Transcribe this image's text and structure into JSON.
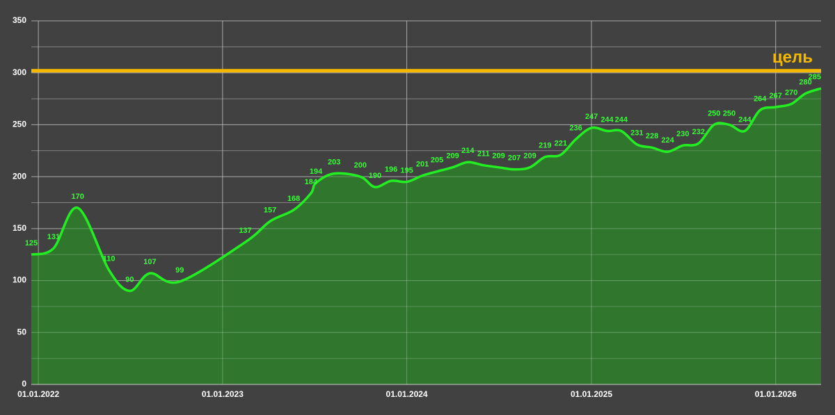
{
  "chart_data": {
    "type": "area",
    "x": [
      "18.12.2021",
      "31.01.2022",
      "20.03.2022",
      "21.05.2022",
      "01.07.2022",
      "10.08.2022",
      "08.10.2022",
      "15.02.2023",
      "05.04.2023",
      "22.05.2023",
      "25.06.2023",
      "05.07.2023",
      "10.08.2023",
      "01.10.2023",
      "30.10.2023",
      "01.12.2023",
      "01.01.2024",
      "01.02.2024",
      "01.03.2024",
      "01.04.2024",
      "01.05.2024",
      "01.06.2024",
      "01.07.2024",
      "01.08.2024",
      "01.09.2024",
      "01.10.2024",
      "01.11.2024",
      "01.12.2024",
      "01.01.2025",
      "01.02.2025",
      "01.03.2025",
      "01.04.2025",
      "01.05.2025",
      "01.06.2025",
      "01.07.2025",
      "01.08.2025",
      "01.09.2025",
      "01.10.2025",
      "01.11.2025",
      "01.12.2025",
      "01.01.2026",
      "01.02.2026",
      "01.03.2026",
      "01.04.2026"
    ],
    "values": [
      125,
      131,
      170,
      110,
      90,
      107,
      99,
      137,
      157,
      168,
      184,
      194,
      203,
      200,
      190,
      196,
      195,
      201,
      205,
      209,
      214,
      211,
      209,
      207,
      209,
      219,
      221,
      236,
      247,
      244,
      244,
      231,
      228,
      224,
      230,
      232,
      250,
      250,
      244,
      264,
      267,
      270,
      280,
      285
    ],
    "line_color": "#22ee22",
    "fill_color": "#2f7a2c",
    "label_color": "#33ff33",
    "xlim": [
      "18.12.2021",
      "01.04.2026"
    ],
    "xticks": [
      "01.01.2022",
      "01.01.2023",
      "01.01.2024",
      "01.01.2025",
      "01.01.2026"
    ],
    "ylim": [
      0,
      350
    ],
    "yticks": [
      0,
      50,
      100,
      150,
      200,
      250,
      300,
      350
    ],
    "y_minor_ticks": [
      25,
      75,
      125,
      175,
      225,
      275,
      325
    ],
    "grid": true,
    "target": {
      "value": 302,
      "label": "цель",
      "color": "#f5b800"
    }
  }
}
